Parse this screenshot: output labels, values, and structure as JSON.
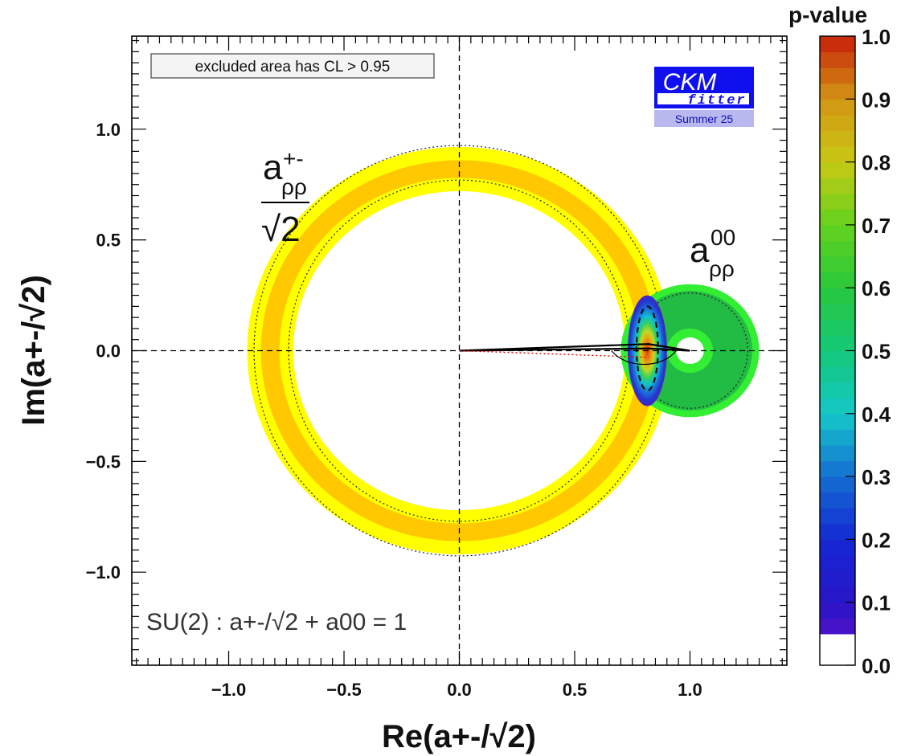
{
  "chart_data": {
    "type": "contour",
    "title": "",
    "xlabel": "Re(a+-/√2)",
    "ylabel": "Im(a+-/√2)",
    "xlim": [
      -1.42,
      1.42
    ],
    "ylim": [
      -1.42,
      1.42
    ],
    "xticks": [
      {
        "value": -1.0,
        "label": "−1.0"
      },
      {
        "value": -0.5,
        "label": "−0.5"
      },
      {
        "value": 0.0,
        "label": "0.0"
      },
      {
        "value": 0.5,
        "label": "0.5"
      },
      {
        "value": 1.0,
        "label": "1.0"
      }
    ],
    "yticks": [
      {
        "value": 1.0,
        "label": "1.0"
      },
      {
        "value": 0.5,
        "label": "0.5"
      },
      {
        "value": 0.0,
        "label": "0.0"
      },
      {
        "value": -0.5,
        "label": "−0.5"
      },
      {
        "value": -1.0,
        "label": "−1.0"
      }
    ],
    "legend_box": "excluded area has CL > 0.95",
    "su2_relation": "SU(2) : a+-/√2 + a00 = 1",
    "annotations": {
      "charged": {
        "base": "a",
        "sup": "+-",
        "sub": "ρρ",
        "denominator": "√2"
      },
      "neutral": {
        "base": "a",
        "sup": "00",
        "sub": "ρρ"
      }
    },
    "regions": {
      "charged_ring": {
        "center": [
          0,
          0
        ],
        "yellow_radii": [
          0.72,
          0.92
        ],
        "orange_radii": [
          0.78,
          0.86
        ],
        "dotted_radii": [
          0.74,
          0.89
        ]
      },
      "neutral_disk": {
        "center": [
          1,
          0
        ],
        "green_outer_radius": 0.3,
        "green_inner_radius": 0.27,
        "dark_green_hole": 0.05,
        "dotted_radius": 0.25,
        "hole_radius": 0.1
      },
      "best_fit_blob": {
        "center": [
          0.815,
          0.0
        ],
        "rx": 0.085,
        "ry": 0.25,
        "peak_pvalue": 0.95
      }
    },
    "colorbar": {
      "title": "p-value",
      "range": [
        0.0,
        1.0
      ],
      "labels": [
        "1.0",
        "0.9",
        "0.8",
        "0.7",
        "0.6",
        "0.5",
        "0.4",
        "0.3",
        "0.2",
        "0.1",
        "0.0"
      ],
      "white_below": 0.05
    },
    "colors": {
      "yellow": "#ffff00",
      "orange": "#ffc800",
      "green_light": "#33ee33",
      "green_dark": "#22bb44",
      "red": "#cc1100"
    }
  },
  "logo": {
    "line1": "CKM",
    "line2": "fitter",
    "line3": "Summer 25"
  }
}
